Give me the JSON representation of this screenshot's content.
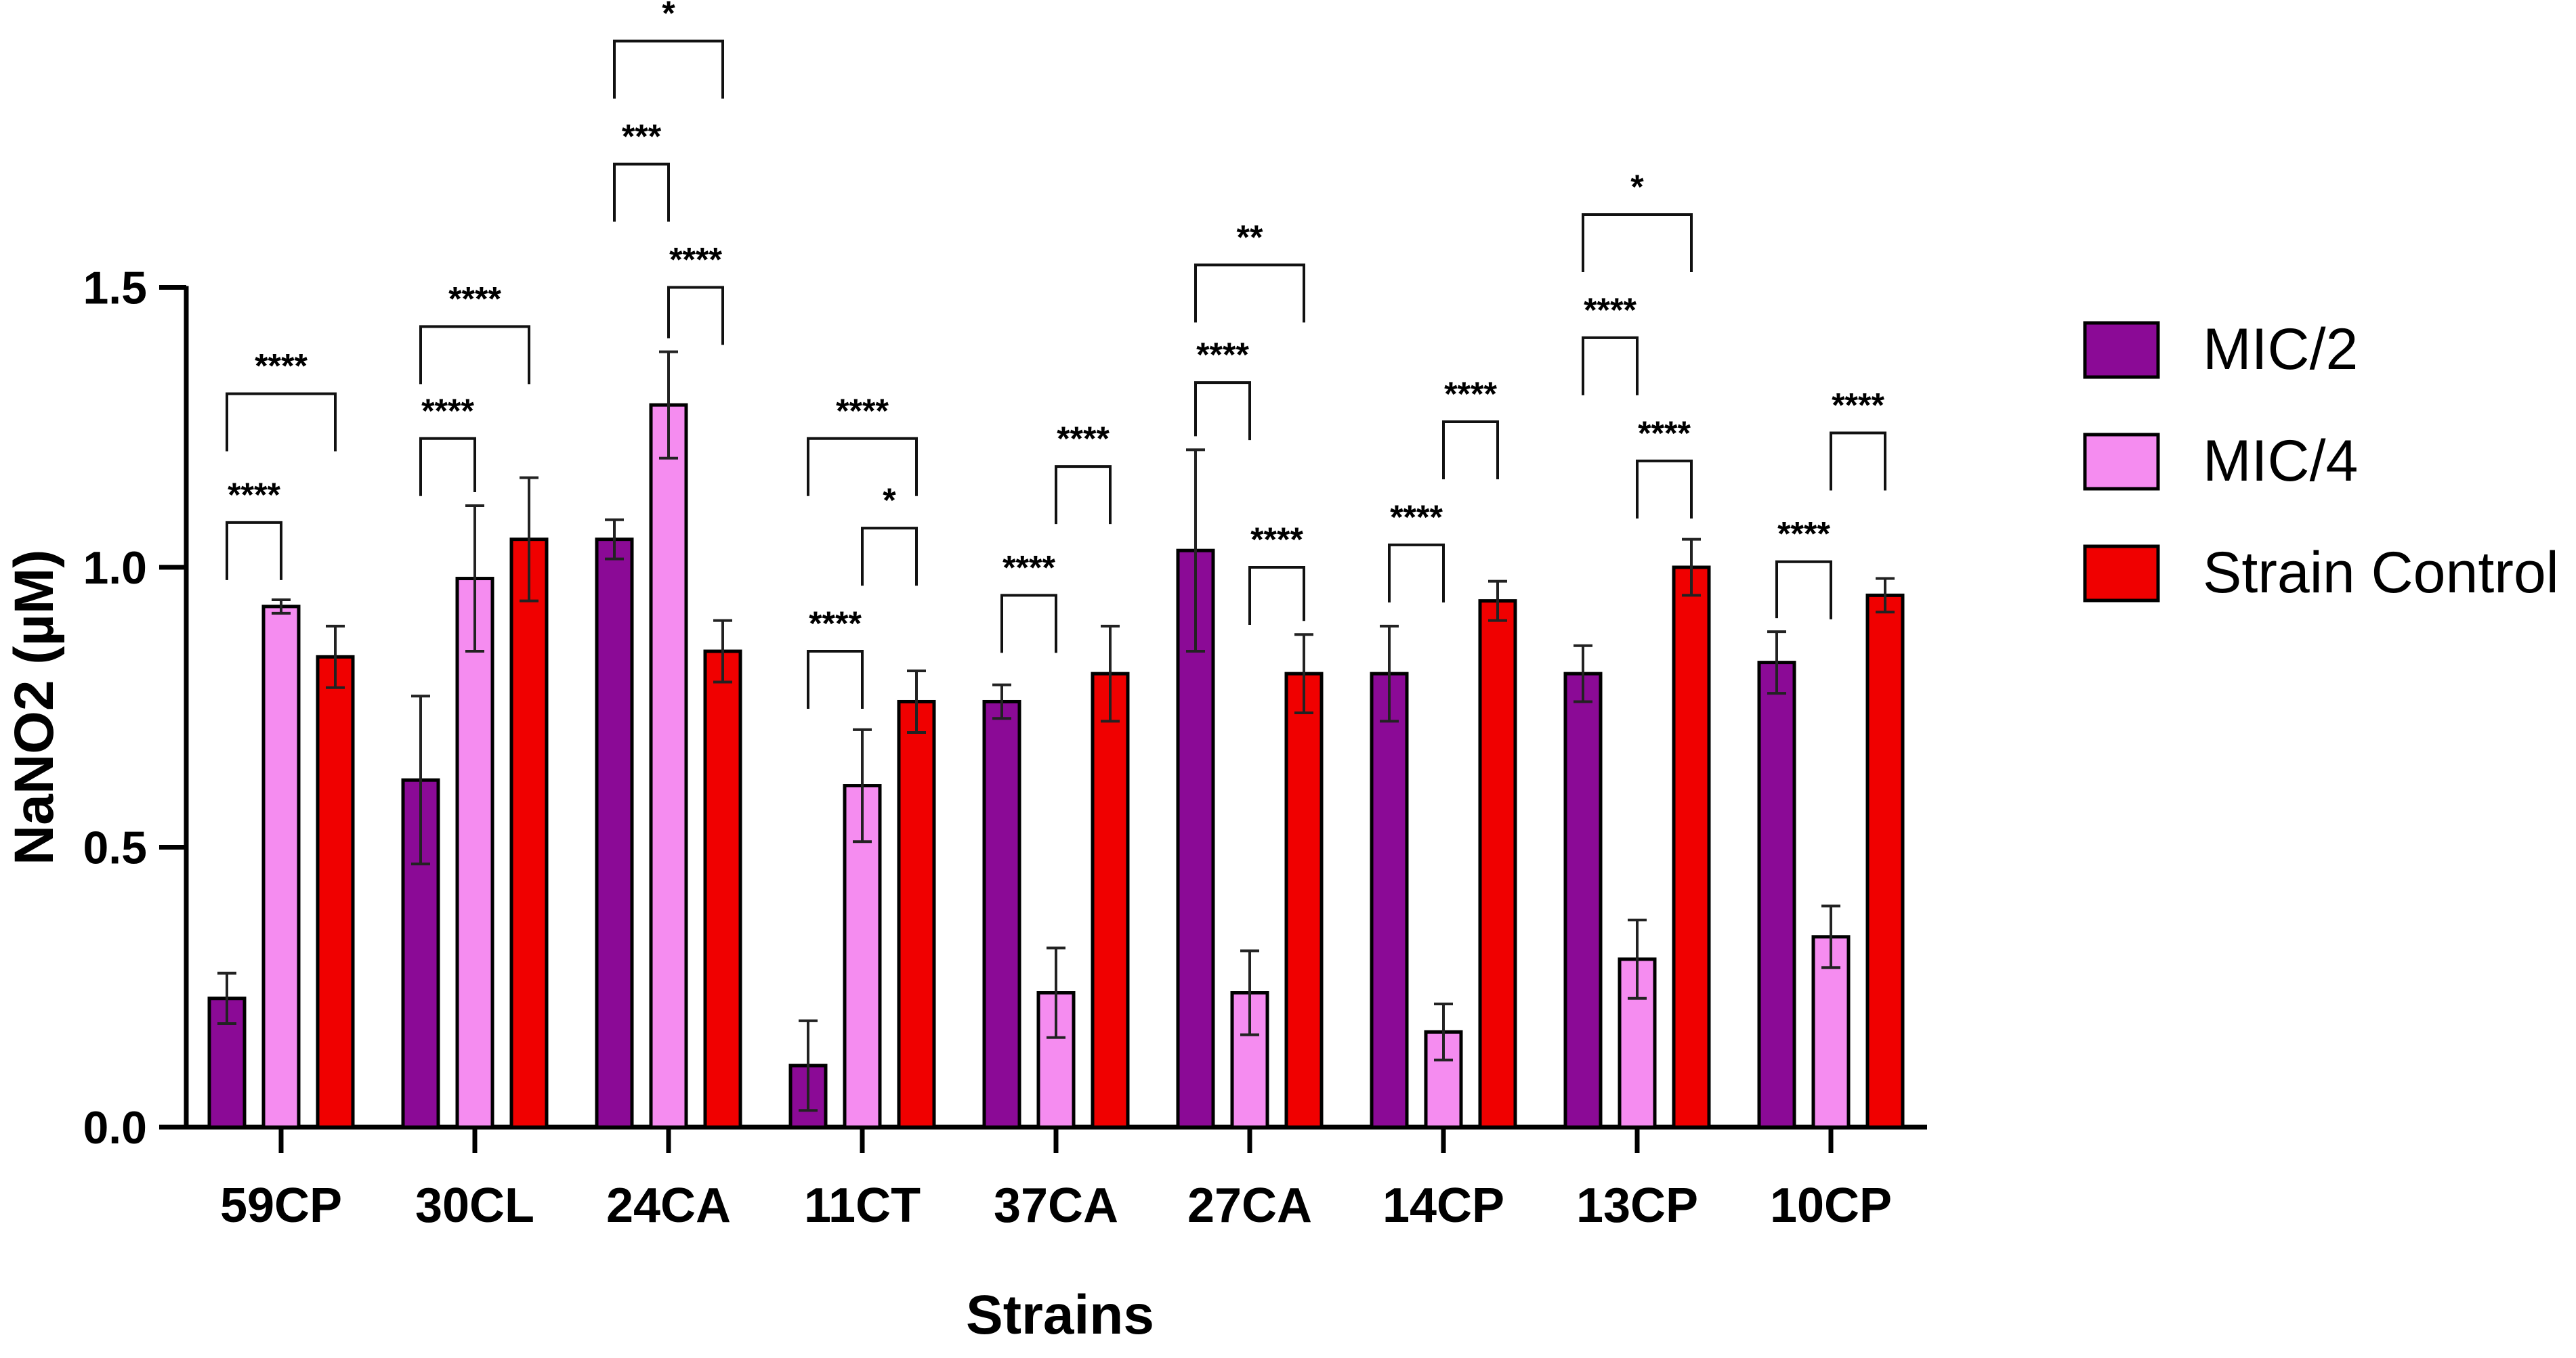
{
  "chart_data": {
    "type": "bar",
    "title": "",
    "xlabel": "Strains",
    "ylabel": "NaNO2 (µM)",
    "ylim": [
      0,
      1.5
    ],
    "yticks": [
      "0.0",
      "0.5",
      "1.0",
      "1.5"
    ],
    "grid": false,
    "legend_position": "right",
    "categories": [
      "59CP",
      "30CL",
      "24CA",
      "11CT",
      "37CA",
      "27CA",
      "14CP",
      "13CP",
      "10CP"
    ],
    "series": [
      {
        "name": "MIC/2",
        "color": "#8b0a96",
        "values": [
          0.23,
          0.62,
          1.05,
          0.11,
          0.76,
          1.03,
          0.81,
          0.81,
          0.83
        ],
        "errors": [
          0.045,
          0.15,
          0.035,
          0.08,
          0.03,
          0.18,
          0.085,
          0.05,
          0.055
        ]
      },
      {
        "name": "MIC/4",
        "color": "#f58cf0",
        "values": [
          0.93,
          0.98,
          1.29,
          0.61,
          0.24,
          0.24,
          0.17,
          0.3,
          0.34
        ],
        "errors": [
          0.012,
          0.13,
          0.095,
          0.1,
          0.08,
          0.075,
          0.05,
          0.07,
          0.055
        ]
      },
      {
        "name": "Strain Control",
        "color": "#f00000",
        "values": [
          0.84,
          1.05,
          0.85,
          0.76,
          0.81,
          0.81,
          0.94,
          1.0,
          0.95
        ],
        "errors": [
          0.055,
          0.11,
          0.055,
          0.055,
          0.085,
          0.07,
          0.035,
          0.05,
          0.03
        ]
      }
    ],
    "significance": [
      {
        "category": "59CP",
        "pair": [
          0,
          1
        ],
        "label": "****",
        "bracket_y": 1.08
      },
      {
        "category": "59CP",
        "pair": [
          0,
          2
        ],
        "label": "****",
        "bracket_y": 1.31
      },
      {
        "category": "30CL",
        "pair": [
          0,
          1
        ],
        "label": "****",
        "bracket_y": 1.23
      },
      {
        "category": "30CL",
        "pair": [
          0,
          2
        ],
        "label": "****",
        "bracket_y": 1.43
      },
      {
        "category": "24CA",
        "pair": [
          0,
          1
        ],
        "label": "***",
        "bracket_y": 1.72
      },
      {
        "category": "24CA",
        "pair": [
          1,
          2
        ],
        "label": "****",
        "bracket_y": 1.5
      },
      {
        "category": "24CA",
        "pair": [
          0,
          2
        ],
        "label": "*",
        "bracket_y": 1.94
      },
      {
        "category": "11CT",
        "pair": [
          0,
          1
        ],
        "label": "****",
        "bracket_y": 0.85
      },
      {
        "category": "11CT",
        "pair": [
          1,
          2
        ],
        "label": "*",
        "bracket_y": 1.07
      },
      {
        "category": "11CT",
        "pair": [
          0,
          2
        ],
        "label": "****",
        "bracket_y": 1.23
      },
      {
        "category": "37CA",
        "pair": [
          0,
          1
        ],
        "label": "****",
        "bracket_y": 0.95
      },
      {
        "category": "37CA",
        "pair": [
          1,
          2
        ],
        "label": "****",
        "bracket_y": 1.18
      },
      {
        "category": "27CA",
        "pair": [
          0,
          1
        ],
        "label": "****",
        "bracket_y": 1.33
      },
      {
        "category": "27CA",
        "pair": [
          1,
          2
        ],
        "label": "****",
        "bracket_y": 1.0
      },
      {
        "category": "27CA",
        "pair": [
          0,
          2
        ],
        "label": "**",
        "bracket_y": 1.54
      },
      {
        "category": "14CP",
        "pair": [
          0,
          1
        ],
        "label": "****",
        "bracket_y": 1.04
      },
      {
        "category": "14CP",
        "pair": [
          1,
          2
        ],
        "label": "****",
        "bracket_y": 1.26
      },
      {
        "category": "13CP",
        "pair": [
          0,
          1
        ],
        "label": "****",
        "bracket_y": 1.41
      },
      {
        "category": "13CP",
        "pair": [
          1,
          2
        ],
        "label": "****",
        "bracket_y": 1.19
      },
      {
        "category": "13CP",
        "pair": [
          0,
          2
        ],
        "label": "*",
        "bracket_y": 1.63
      },
      {
        "category": "10CP",
        "pair": [
          0,
          1
        ],
        "label": "****",
        "bracket_y": 1.01
      },
      {
        "category": "10CP",
        "pair": [
          1,
          2
        ],
        "label": "****",
        "bracket_y": 1.24
      }
    ]
  }
}
